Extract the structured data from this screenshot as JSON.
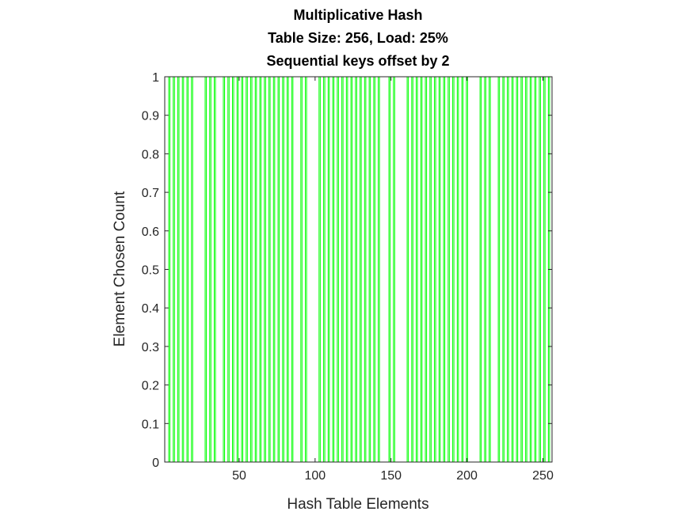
{
  "chart_data": {
    "type": "bar",
    "title": [
      "Multiplicative Hash",
      "Table Size: 256, Load: 25%",
      "Sequential keys offset by 2"
    ],
    "xlabel": "Hash Table Elements",
    "ylabel": "Element Chosen Count",
    "xlim": [
      1,
      256
    ],
    "ylim": [
      0,
      1
    ],
    "x_ticks": [
      50,
      100,
      150,
      200,
      250
    ],
    "y_ticks": [
      0,
      0.1,
      0.2,
      0.3,
      0.4,
      0.5,
      0.6,
      0.7,
      0.8,
      0.9,
      1
    ],
    "grid": false,
    "bar_color": "#00ff00",
    "bar_style": "outline",
    "series": [
      {
        "x": [
          4,
          7,
          10,
          13,
          16,
          19,
          28,
          31,
          34,
          40,
          43,
          46,
          49,
          52,
          55,
          58,
          61,
          64,
          67,
          70,
          73,
          76,
          79,
          82,
          85,
          91,
          94,
          103,
          106,
          109,
          112,
          115,
          118,
          121,
          124,
          127,
          130,
          133,
          136,
          139,
          142,
          149,
          152,
          161,
          164,
          167,
          170,
          173,
          176,
          179,
          182,
          185,
          188,
          191,
          194,
          197,
          200,
          209,
          212,
          215,
          221,
          224,
          227,
          230,
          233,
          236,
          239,
          242,
          245,
          248,
          251,
          254
        ],
        "values": [
          1,
          1,
          1,
          1,
          1,
          1,
          1,
          1,
          1,
          1,
          1,
          1,
          1,
          1,
          1,
          1,
          1,
          1,
          1,
          1,
          1,
          1,
          1,
          1,
          1,
          1,
          1,
          1,
          1,
          1,
          1,
          1,
          1,
          1,
          1,
          1,
          1,
          1,
          1,
          1,
          1,
          1,
          1,
          1,
          1,
          1,
          1,
          1,
          1,
          1,
          1,
          1,
          1,
          1,
          1,
          1,
          1,
          1,
          1,
          1,
          1,
          1,
          1,
          1,
          1,
          1,
          1,
          1,
          1,
          1,
          1,
          1
        ]
      }
    ]
  }
}
